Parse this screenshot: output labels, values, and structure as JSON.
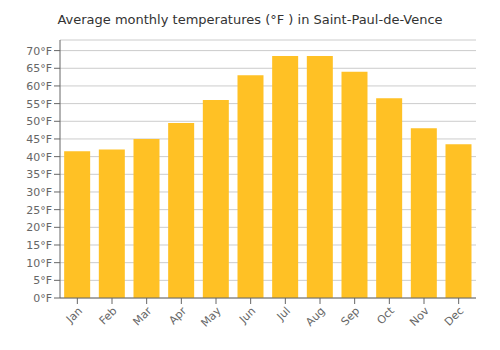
{
  "chart_data": {
    "type": "bar",
    "title": "Average monthly temperatures (°F ) in Saint-Paul-de-Vence",
    "categories": [
      "Jan",
      "Feb",
      "Mar",
      "Apr",
      "May",
      "Jun",
      "Jul",
      "Aug",
      "Sep",
      "Oct",
      "Nov",
      "Dec"
    ],
    "values": [
      41.5,
      42.0,
      45.0,
      49.5,
      56.0,
      63.0,
      68.5,
      68.5,
      64.0,
      56.5,
      48.0,
      43.5
    ],
    "color": "#FFC125",
    "ylim": [
      0,
      73
    ],
    "yticks": [
      {
        "value": 0,
        "label": "0°F"
      },
      {
        "value": 5,
        "label": "5°F"
      },
      {
        "value": 10,
        "label": "10°F"
      },
      {
        "value": 15,
        "label": "15°F"
      },
      {
        "value": 20,
        "label": "20°F"
      },
      {
        "value": 25,
        "label": "25°F"
      },
      {
        "value": 30,
        "label": "30°F"
      },
      {
        "value": 35,
        "label": "35°F"
      },
      {
        "value": 40,
        "label": "40°F"
      },
      {
        "value": 45,
        "label": "45°F"
      },
      {
        "value": 50,
        "label": "50°F"
      },
      {
        "value": 55,
        "label": "55°F"
      },
      {
        "value": 60,
        "label": "60°F"
      },
      {
        "value": 65,
        "label": "65°F"
      },
      {
        "value": 70,
        "label": "70°F"
      }
    ],
    "grid": true
  }
}
